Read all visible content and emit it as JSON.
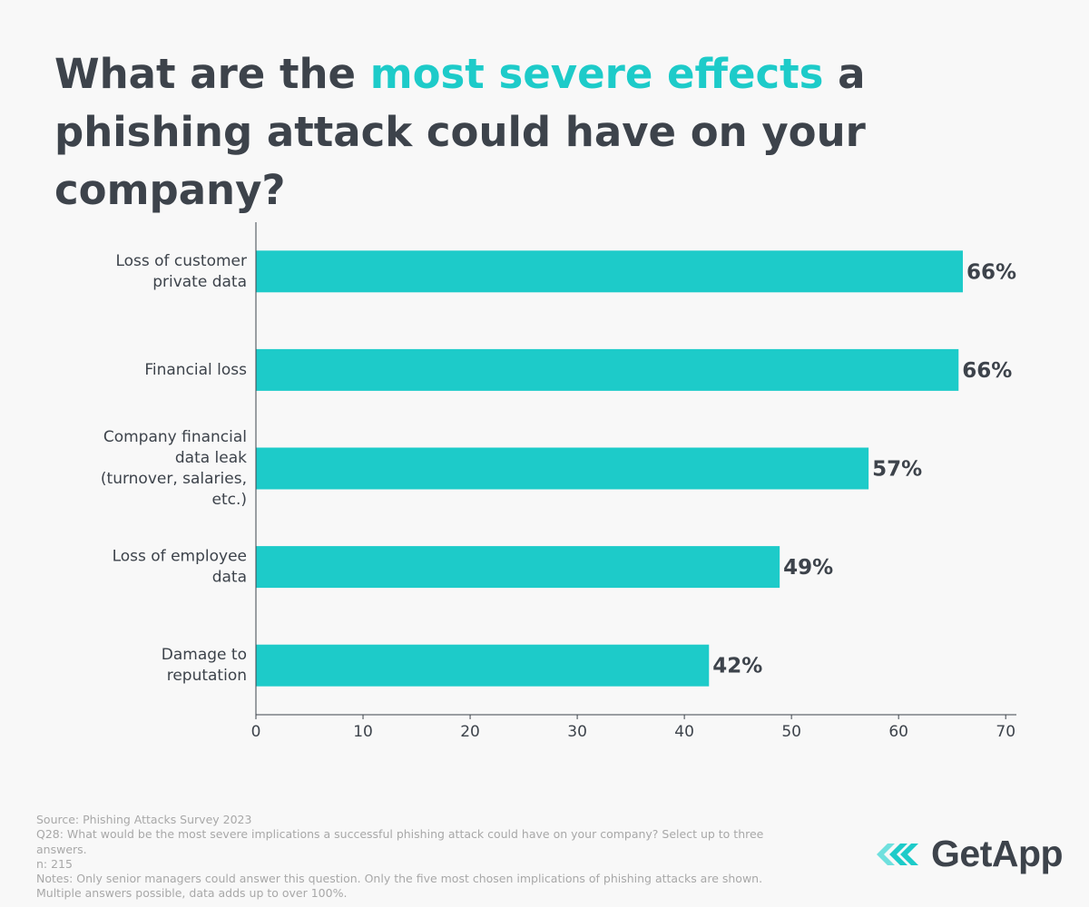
{
  "title": {
    "before": "What are the ",
    "highlight": "most severe effects",
    "after": " a phishing attack could have on your company?"
  },
  "chart_data": {
    "type": "bar",
    "orientation": "horizontal",
    "categories": [
      [
        "Loss of customer",
        "private data"
      ],
      [
        "Financial loss"
      ],
      [
        "Company financial",
        "data leak",
        "(turnover, salaries,",
        "etc.)"
      ],
      [
        "Loss of employee",
        "data"
      ],
      [
        "Damage to",
        "reputation"
      ]
    ],
    "values": [
      66,
      65.6,
      57.2,
      48.9,
      42.3
    ],
    "data_labels": [
      "66%",
      "66%",
      "57%",
      "49%",
      "42%"
    ],
    "xlim": [
      0,
      71
    ],
    "xticks": [
      0,
      10,
      20,
      30,
      40,
      50,
      60,
      70
    ],
    "bar_color": "#1dcbc9",
    "grid": false,
    "legend": "none"
  },
  "footer": {
    "source": "Source: Phishing Attacks Survey 2023",
    "question_line1": "Q28: What would be the most severe implications a successful phishing attack could have on your company? Select up to three",
    "question_line2": "answers.",
    "n": "n: 215",
    "notes_line1": "Notes: Only senior managers could answer this question. Only the five most chosen implications of phishing attacks are shown.",
    "notes_line2": "Multiple answers possible, data adds up to over 100%."
  },
  "logo": {
    "text": "GetApp",
    "icon": "getapp-chevrons-icon",
    "colors": [
      "#1dcbc9",
      "#6fe0de"
    ]
  },
  "colors": {
    "text": "#3d434b",
    "accent": "#1dcbc9",
    "background": "#f8f8f8",
    "footer_text": "#a8a8a8"
  }
}
